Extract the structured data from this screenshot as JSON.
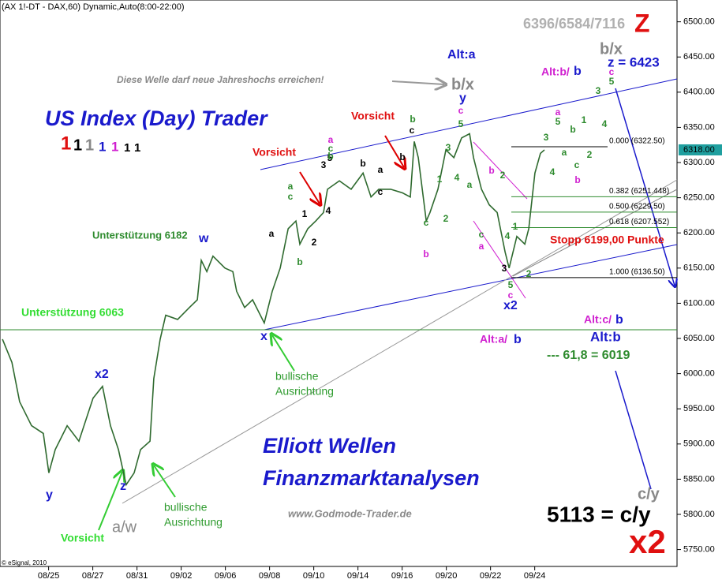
{
  "header": "(AX 1!-DT - DAX,60) Dynamic,Auto(8:00-22:00)",
  "copyright": "© eSignal, 2010",
  "targets": "6396/6584/7116",
  "z_mark": "Z",
  "brand": "US Index (Day) Trader",
  "brand_digits": [
    "1",
    "1",
    "1",
    "1",
    "1",
    "1",
    "1"
  ],
  "footer_title_1": "Elliott Wellen",
  "footer_title_2": "Finanzmarktanalysen",
  "website": "www.Godmode-Trader.de",
  "support_6182": "Unterstützung 6182",
  "support_6063": "Unterstützung 6063",
  "note": "Diese Welle darf neue Jahreshochs  erreichen!",
  "warnings": [
    "Vorsicht",
    "Vorsicht",
    "Vorsicht"
  ],
  "bullish_1": [
    "bullische",
    "Ausrichtung"
  ],
  "bullish_2": [
    "bullische",
    "Ausrichtung"
  ],
  "alt_a": "Alt:a",
  "bx_1": "b/x",
  "bx_2": "b/x",
  "z_target": "z = 6423",
  "alt_b_1": [
    "Alt:b/",
    "b"
  ],
  "alt_c": [
    "Alt:c/",
    "b"
  ],
  "alt_b_2": "Alt:b",
  "fib_618": "--- 61,8 = 6019",
  "alt_a_2": [
    "Alt:a/",
    "b"
  ],
  "stop": "Stopp 6199,00 Punkte",
  "target_cy": "5113 = c/y",
  "big_x2": "x2",
  "cy": "c/y",
  "aw": "a/w",
  "waves": [
    "w",
    "x",
    "y",
    "x2",
    "x2",
    "y",
    "z"
  ],
  "wave_labels": [
    "3",
    "5",
    "a",
    "c",
    "b",
    "4",
    "a",
    "c",
    "1",
    "2",
    "b",
    "a",
    "b",
    "a",
    "c",
    "b",
    "b",
    "c",
    "c",
    "b",
    "3",
    "1",
    "4",
    "2",
    "5",
    "c",
    "a",
    "b",
    "2",
    "c",
    "a",
    "1",
    "4",
    "3",
    "5",
    "c",
    "2",
    "3",
    "4",
    "5",
    "a",
    "a",
    "b",
    "c",
    "b",
    "1",
    "2",
    "3",
    "4",
    "5",
    "c"
  ],
  "chart_data": {
    "type": "line",
    "x": [
      -2.09,
      -1.66,
      -1.31,
      -0.77,
      -0.24,
      0.01,
      0.3,
      0.84,
      1.37,
      2.01,
      2.44,
      2.8,
      3.16,
      3.51,
      3.87,
      4.16,
      4.59,
      4.76,
      5.05,
      5.3,
      5.84,
      6.37,
      6.73,
      6.91,
      7.16,
      7.44,
      7.98,
      8.34,
      8.51,
      8.87,
      9.23,
      9.76,
      10.12,
      10.48,
      10.84,
      11.19,
      11.37,
      11.73,
      12.09,
      12.44,
      12.62,
      13.16,
      13.69,
      14.23,
      14.59,
      14.94,
      15.48,
      16.01,
      16.37,
      16.55,
      16.73,
      17.09,
      17.26,
      17.62,
      17.98,
      18.34,
      18.69,
      19.05,
      19.23,
      19.59,
      19.94,
      20.3,
      20.66,
      20.84,
      21.19,
      21.55,
      21.73,
      22.01,
      22.26,
      22.44
    ],
    "series": [
      {
        "color": "#2f6a2f",
        "values": [
          6049,
          6016,
          5960,
          5926,
          5915,
          5859,
          5892,
          5926,
          5904,
          5965,
          5982,
          5926,
          5892,
          5842,
          5859,
          5892,
          5904,
          5993,
          6049,
          6083,
          6077,
          6094,
          6105,
          6161,
          6145,
          6167,
          6150,
          6145,
          6117,
          6094,
          6105,
          6072,
          6117,
          6150,
          6206,
          6217,
          6184,
          6206,
          6217,
          6229,
          6262,
          6274,
          6262,
          6285,
          6251,
          6262,
          6262,
          6257,
          6251,
          6330,
          6307,
          6217,
          6229,
          6262,
          6318,
          6307,
          6335,
          6341,
          6307,
          6262,
          6240,
          6229,
          6173,
          6150,
          6195,
          6184,
          6206,
          6285,
          6313,
          6318
        ]
      }
    ],
    "xlim": [
      -2.2,
      28.44
    ],
    "xticks": [
      {
        "value": 0,
        "label": "08/25"
      },
      {
        "value": 2,
        "label": "08/27"
      },
      {
        "value": 4,
        "label": "08/31"
      },
      {
        "value": 6,
        "label": "09/02"
      },
      {
        "value": 8,
        "label": "09/06"
      },
      {
        "value": 10,
        "label": "09/08"
      },
      {
        "value": 12,
        "label": "09/10"
      },
      {
        "value": 14,
        "label": "09/14"
      },
      {
        "value": 16,
        "label": "09/16"
      },
      {
        "value": 18,
        "label": "09/20"
      },
      {
        "value": 20,
        "label": "09/22"
      },
      {
        "value": 22,
        "label": "09/24"
      }
    ],
    "ylim": [
      5726,
      6531
    ],
    "yticks": [
      {
        "value": 5750,
        "label": "5750.00"
      },
      {
        "value": 5800,
        "label": "5800.00"
      },
      {
        "value": 5850,
        "label": "5850.00"
      },
      {
        "value": 5900,
        "label": "5900.00"
      },
      {
        "value": 5950,
        "label": "5950.00"
      },
      {
        "value": 6000,
        "label": "6000.00"
      },
      {
        "value": 6050,
        "label": "6050.00"
      },
      {
        "value": 6100,
        "label": "6100.00"
      },
      {
        "value": 6150,
        "label": "6150.00"
      },
      {
        "value": 6200,
        "label": "6200.00"
      },
      {
        "value": 6250,
        "label": "6250.00"
      },
      {
        "value": 6300,
        "label": "6300.00"
      },
      {
        "value": 6350,
        "label": "6350.00"
      },
      {
        "value": 6400,
        "label": "6400.00"
      },
      {
        "value": 6450,
        "label": "6450.00"
      },
      {
        "value": 6500,
        "label": "6500.00"
      }
    ],
    "last_price": {
      "value": 6318,
      "label": "6318.00"
    },
    "fib_levels": [
      {
        "value": 6322.5,
        "label": "0.000 (6322.50)",
        "color": "#000000"
      },
      {
        "value": 6251.448,
        "label": "0.382 (6251.448)",
        "color": "#2e8b2e"
      },
      {
        "value": 6229.5,
        "label": "0.500 (6229.50)",
        "color": "#2e8b2e"
      },
      {
        "value": 6207.552,
        "label": "0.618 (6207.552)",
        "color": "#2e8b2e"
      },
      {
        "value": 6136.5,
        "label": "1.000 (6136.50)",
        "color": "#000000"
      }
    ]
  }
}
